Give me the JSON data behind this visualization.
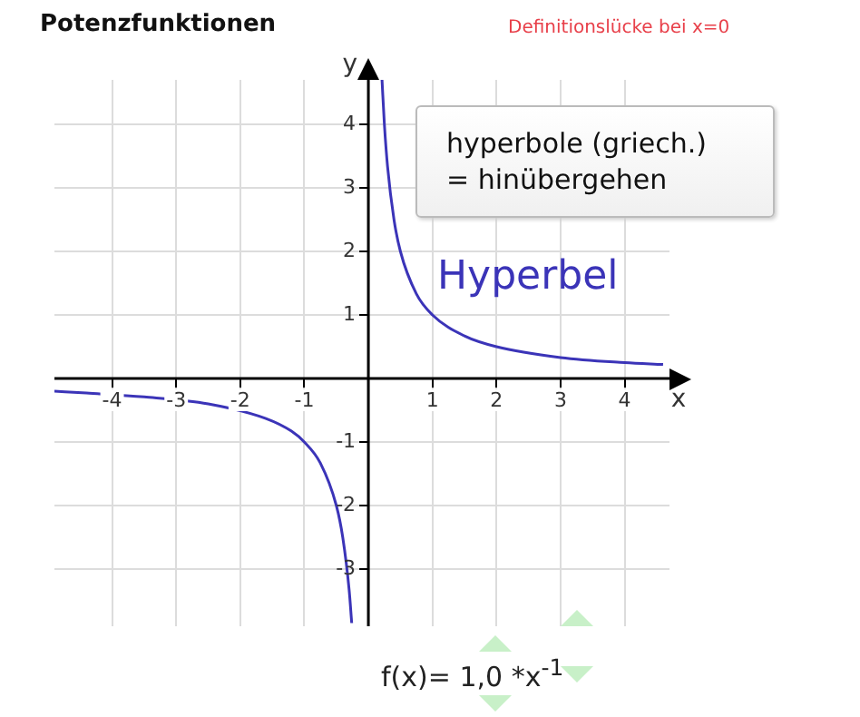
{
  "chart_data": {
    "type": "line",
    "title": "Potenzfunktionen",
    "xlabel": "x",
    "ylabel": "y",
    "annotations": [
      "Definitionslücke bei x=0",
      "hyperbole (griech.)\n= hinübergehen",
      "f(x)= 1,0 *x$^{-1}$"
    ],
    "series": [
      {
        "name": "Hyperbel",
        "color": "#3b34b8",
        "x": [
          -4.9,
          -4.4,
          -3.5,
          -2.5,
          -1.6,
          -1.2,
          -1,
          -0.75,
          -0.5,
          -0.4,
          -0.3,
          -0.26,
          null,
          0.213,
          0.25,
          0.3,
          0.4,
          0.5,
          0.75,
          1,
          1.5,
          2,
          3,
          4,
          4.6
        ],
        "values": [
          -0.2,
          -0.23,
          -0.29,
          -0.4,
          -0.63,
          -0.83,
          -1,
          -1.33,
          -2,
          -2.5,
          -3.33,
          -3.85,
          null,
          4.7,
          4,
          3.33,
          2.5,
          2,
          1.33,
          1,
          0.67,
          0.5,
          0.33,
          0.25,
          0.22
        ]
      }
    ],
    "xlim": [
      -4.9,
      4.7
    ],
    "ylim": [
      -3.9,
      4.7
    ],
    "xticks": [
      -4,
      -3,
      -2,
      -1,
      1,
      2,
      3,
      4
    ],
    "yticks": [
      -3,
      -2,
      -1,
      1,
      2,
      3,
      4
    ],
    "grid": true,
    "legend": false,
    "marker": "none",
    "line_style": "solid"
  }
}
